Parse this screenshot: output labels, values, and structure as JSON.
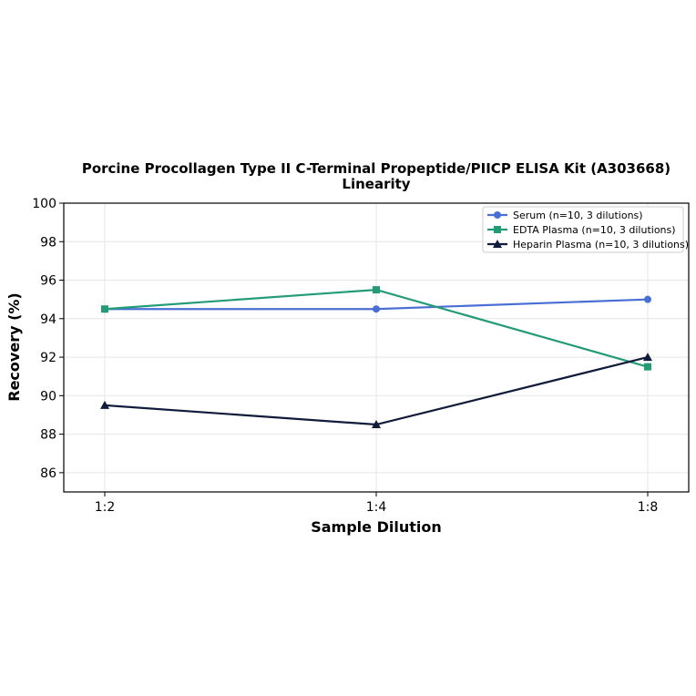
{
  "chart_data": {
    "type": "line",
    "title": "Porcine Procollagen Type II C-Terminal Propeptide/PIICP ELISA Kit (A303668)",
    "subtitle": "Linearity",
    "xlabel": "Sample Dilution",
    "ylabel": "Recovery (%)",
    "categories": [
      "1:2",
      "1:4",
      "1:8"
    ],
    "ylim": [
      85,
      100
    ],
    "yticks": [
      86,
      88,
      90,
      92,
      94,
      96,
      98,
      100
    ],
    "grid": true,
    "legend_position": "top-right",
    "series": [
      {
        "name": "Serum (n=10, 3 dilutions)",
        "values": [
          94.5,
          94.5,
          95.0
        ],
        "color": "#4a6fd4",
        "marker": "circle"
      },
      {
        "name": "EDTA Plasma (n=10, 3 dilutions)",
        "values": [
          94.5,
          95.5,
          91.5
        ],
        "color": "#239b77",
        "marker": "square"
      },
      {
        "name": "Heparin Plasma (n=10, 3 dilutions)",
        "values": [
          89.5,
          88.5,
          92.0
        ],
        "color": "#111c3a",
        "marker": "triangle"
      }
    ]
  }
}
